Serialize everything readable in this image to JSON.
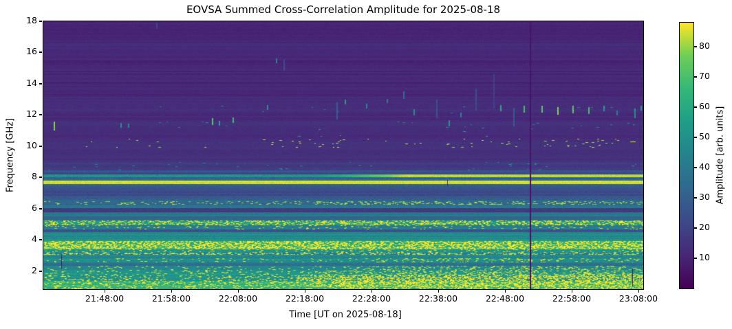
{
  "chart_data": {
    "type": "heatmap",
    "title": "EOVSA Summed Cross-Correlation Amplitude for 2025-08-18",
    "xlabel": "Time [UT on 2025-08-18]",
    "ylabel": "Frequency [GHz]",
    "x_ticks": [
      "21:48:00",
      "21:58:00",
      "22:08:00",
      "22:18:00",
      "22:28:00",
      "22:38:00",
      "22:48:00",
      "22:58:00",
      "23:08:00"
    ],
    "x_range": [
      "21:38:50",
      "23:08:44"
    ],
    "y_ticks": [
      2,
      4,
      6,
      8,
      10,
      12,
      14,
      16,
      18
    ],
    "y_range": [
      0.85,
      18.0
    ],
    "grid": false,
    "colormap": "viridis",
    "colorbar": {
      "label": "Amplitude [arb. units]",
      "ticks": [
        10,
        20,
        30,
        40,
        50,
        60,
        70,
        80
      ],
      "vmin": 0,
      "vmax": 88
    },
    "bands": [
      {
        "f": [
          17.2,
          18.05
        ],
        "amp": 10,
        "rv": 2,
        "cv": 1.5
      },
      {
        "f": [
          13.0,
          17.2
        ],
        "amp": 11,
        "rv": 2.5,
        "cv": 1.5
      },
      {
        "f": [
          12.6,
          13.0
        ],
        "amp": 13,
        "rv": 1.5,
        "cv": 2
      },
      {
        "f": [
          12.1,
          12.6
        ],
        "amp": 13.5,
        "rv": 1.5,
        "cv": 2,
        "sp": {
          "amp": 46,
          "p": 0.0015
        },
        "xb": [
          [
            0.75,
            0.96,
            5
          ]
        ]
      },
      {
        "f": [
          11.6,
          12.1
        ],
        "amp": 12,
        "rv": 1.5,
        "cv": 2
      },
      {
        "f": [
          11.1,
          11.6
        ],
        "amp": 13.5,
        "rv": 1.5,
        "cv": 2,
        "sp": {
          "amp": 46,
          "p": 0.002
        },
        "xb": [
          [
            0.66,
            0.84,
            6
          ],
          [
            0.88,
            1.0,
            5
          ]
        ]
      },
      {
        "f": [
          10.5,
          11.1
        ],
        "amp": 12.5,
        "rv": 1.5,
        "cv": 2,
        "sp": {
          "amp": 60,
          "p": 0.0008
        },
        "xb": [
          [
            0.45,
            0.52,
            4
          ],
          [
            0.66,
            0.75,
            5
          ]
        ]
      },
      {
        "f": [
          9.9,
          10.5
        ],
        "amp": 14,
        "rv": 1.5,
        "cv": 2,
        "sp": {
          "amp": 82,
          "p": 0.004
        },
        "xb": [
          [
            0.07,
            0.2,
            3
          ],
          [
            0.35,
            0.58,
            5
          ],
          [
            0.66,
            0.8,
            6
          ],
          [
            0.82,
            0.99,
            7
          ]
        ]
      },
      {
        "f": [
          9.0,
          9.9
        ],
        "amp": 14,
        "rv": 1.5,
        "cv": 2
      },
      {
        "f": [
          8.45,
          9.0
        ],
        "amp": 17,
        "rv": 2,
        "cv": 2.5,
        "sp": {
          "amp": 46,
          "p": 0.003
        },
        "xb": [
          [
            0.2,
            0.33,
            4
          ],
          [
            0.68,
            0.84,
            5
          ]
        ]
      },
      {
        "f": [
          8.2,
          8.45
        ],
        "amp": 24,
        "rv": 3,
        "cv": 3
      },
      {
        "f": [
          8.0,
          8.2
        ],
        "amp": 50,
        "rv": 5,
        "cv": 7,
        "xsplit": {
          "x": 0.6,
          "amp": 83
        }
      },
      {
        "f": [
          7.78,
          8.0
        ],
        "amp": 34,
        "rv": 4,
        "cv": 6
      },
      {
        "f": [
          7.6,
          7.78
        ],
        "amp": 85,
        "rv": 2,
        "cv": 3
      },
      {
        "f": [
          7.2,
          7.6
        ],
        "amp": 28,
        "rv": 3,
        "cv": 3.5
      },
      {
        "f": [
          6.85,
          7.2
        ],
        "amp": 22,
        "rv": 3,
        "cv": 3
      },
      {
        "f": [
          6.5,
          6.85
        ],
        "amp": 31,
        "rv": 3.5,
        "cv": 4
      },
      {
        "f": [
          6.28,
          6.5
        ],
        "amp": 33,
        "rv": 3,
        "cv": 4,
        "sp": {
          "amp": 80,
          "p": 0.1
        },
        "xb": [
          [
            0.45,
            1.0,
            2.2
          ]
        ]
      },
      {
        "f": [
          6.05,
          6.28
        ],
        "amp": 37,
        "rv": 3,
        "cv": 4
      },
      {
        "f": [
          5.78,
          6.05
        ],
        "amp": 18,
        "rv": 3,
        "cv": 3
      },
      {
        "f": [
          5.5,
          5.78
        ],
        "amp": 40,
        "rv": 3.5,
        "cv": 4.5
      },
      {
        "f": [
          5.25,
          5.5
        ],
        "amp": 33,
        "rv": 3,
        "cv": 4.5
      },
      {
        "f": [
          4.95,
          5.25
        ],
        "amp": 52,
        "rv": 4,
        "cv": 6,
        "sp": {
          "amp": 85,
          "p": 0.38
        }
      },
      {
        "f": [
          4.68,
          4.95
        ],
        "amp": 40,
        "rv": 3.5,
        "cv": 5,
        "sp": {
          "amp": 83,
          "p": 0.06
        }
      },
      {
        "f": [
          4.5,
          4.68
        ],
        "amp": 23,
        "rv": 3,
        "cv": 4
      },
      {
        "f": [
          4.05,
          4.5
        ],
        "amp": 47,
        "rv": 4,
        "cv": 5.5
      },
      {
        "f": [
          3.95,
          4.05
        ],
        "amp": 52,
        "rv": 3,
        "cv": 5
      },
      {
        "f": [
          3.4,
          3.95
        ],
        "amp": 62,
        "rv": 4,
        "cv": 6,
        "sp": {
          "amp": 88,
          "p": 0.5
        }
      },
      {
        "f": [
          3.18,
          3.4
        ],
        "amp": 49,
        "rv": 3.5,
        "cv": 5,
        "sp": {
          "amp": 85,
          "p": 0.08
        }
      },
      {
        "f": [
          3.05,
          3.18
        ],
        "amp": 42,
        "rv": 3,
        "cv": 5,
        "sp": {
          "amp": 84,
          "p": 0.3
        }
      },
      {
        "f": [
          2.85,
          3.05
        ],
        "amp": 46,
        "rv": 3,
        "cv": 4.5
      },
      {
        "f": [
          2.55,
          2.85
        ],
        "amp": 49,
        "rv": 3.5,
        "cv": 5,
        "sp": {
          "amp": 83,
          "p": 0.04
        },
        "xb": [
          [
            0.55,
            1.0,
            4
          ]
        ]
      },
      {
        "f": [
          2.35,
          2.55
        ],
        "amp": 37,
        "rv": 3,
        "cv": 4.5
      },
      {
        "f": [
          2.05,
          2.35
        ],
        "amp": 49,
        "rv": 3.5,
        "cv": 5,
        "sp": {
          "amp": 83,
          "p": 0.05
        },
        "xb": [
          [
            0.5,
            1.0,
            3
          ]
        ]
      },
      {
        "f": [
          1.76,
          2.05
        ],
        "amp": 53,
        "rv": 3.5,
        "cv": 5.5,
        "sp": {
          "amp": 84,
          "p": 0.07
        },
        "xb": [
          [
            0.45,
            1.0,
            3
          ]
        ]
      },
      {
        "f": [
          1.36,
          1.76
        ],
        "amp": 50,
        "rv": 4,
        "cv": 6,
        "sp": {
          "amp": 86,
          "p": 0.12
        },
        "xb": [
          [
            0.42,
            1.0,
            4.5
          ]
        ]
      },
      {
        "f": [
          1.0,
          1.36
        ],
        "amp": 64,
        "rv": 4,
        "cv": 6,
        "sp": {
          "amp": 87,
          "p": 0.18
        },
        "xb": [
          [
            0.45,
            1.0,
            3
          ]
        ]
      },
      {
        "f": [
          0.82,
          1.0
        ],
        "amp": 62,
        "rv": 4,
        "cv": 6,
        "sp": {
          "amp": 86,
          "p": 0.15
        },
        "xb": [
          [
            0.5,
            1.0,
            2.5
          ]
        ]
      }
    ],
    "features": {
      "gap": {
        "x": 0.811,
        "w": 2,
        "amp": 4
      },
      "marks": [
        {
          "x": 0.03,
          "f": [
            2.2,
            3.05
          ],
          "amp": 6
        },
        {
          "x": 0.982,
          "f": [
            1.05,
            2.15
          ],
          "amp": 6
        },
        {
          "x": 0.673,
          "f": [
            7.5,
            7.85
          ],
          "amp": 10
        }
      ],
      "dashes": [
        {
          "x": 0.017,
          "f": 11.3,
          "h": 0.55,
          "amp": 78
        },
        {
          "x": 0.128,
          "f": 11.35,
          "h": 0.3,
          "amp": 48
        },
        {
          "x": 0.141,
          "f": 11.3,
          "h": 0.25,
          "amp": 46
        },
        {
          "x": 0.188,
          "f": 17.75,
          "h": 0.4,
          "amp": 22
        },
        {
          "x": 0.281,
          "f": 11.6,
          "h": 0.45,
          "amp": 74
        },
        {
          "x": 0.292,
          "f": 11.5,
          "h": 0.3,
          "amp": 58
        },
        {
          "x": 0.315,
          "f": 11.65,
          "h": 0.35,
          "amp": 68
        },
        {
          "x": 0.373,
          "f": 12.5,
          "h": 0.3,
          "amp": 50
        },
        {
          "x": 0.388,
          "f": 15.5,
          "h": 0.3,
          "amp": 46
        },
        {
          "x": 0.4,
          "f": 15.2,
          "h": 0.7,
          "amp": 24
        },
        {
          "x": 0.489,
          "f": 12.3,
          "h": 1.1,
          "amp": 30
        },
        {
          "x": 0.502,
          "f": 12.85,
          "h": 0.3,
          "amp": 55
        },
        {
          "x": 0.538,
          "f": 12.6,
          "h": 0.3,
          "amp": 48
        },
        {
          "x": 0.572,
          "f": 12.9,
          "h": 0.25,
          "amp": 44
        },
        {
          "x": 0.6,
          "f": 13.3,
          "h": 0.5,
          "amp": 36
        },
        {
          "x": 0.617,
          "f": 12.2,
          "h": 0.4,
          "amp": 50
        },
        {
          "x": 0.655,
          "f": 12.4,
          "h": 1.2,
          "amp": 26
        },
        {
          "x": 0.675,
          "f": 11.5,
          "h": 0.4,
          "amp": 52
        },
        {
          "x": 0.695,
          "f": 12.0,
          "h": 0.3,
          "amp": 46
        },
        {
          "x": 0.72,
          "f": 13.0,
          "h": 1.4,
          "amp": 24
        },
        {
          "x": 0.75,
          "f": 13.5,
          "h": 2.2,
          "amp": 20
        },
        {
          "x": 0.762,
          "f": 12.45,
          "h": 0.4,
          "amp": 60
        },
        {
          "x": 0.783,
          "f": 11.9,
          "h": 1.2,
          "amp": 30
        },
        {
          "x": 0.8,
          "f": 12.35,
          "h": 0.45,
          "amp": 70
        },
        {
          "x": 0.83,
          "f": 12.35,
          "h": 0.45,
          "amp": 72
        },
        {
          "x": 0.857,
          "f": 12.3,
          "h": 0.5,
          "amp": 78
        },
        {
          "x": 0.882,
          "f": 12.35,
          "h": 0.5,
          "amp": 74
        },
        {
          "x": 0.908,
          "f": 12.3,
          "h": 0.45,
          "amp": 70
        },
        {
          "x": 0.933,
          "f": 12.4,
          "h": 0.35,
          "amp": 55
        },
        {
          "x": 0.955,
          "f": 12.15,
          "h": 0.3,
          "amp": 45
        },
        {
          "x": 0.985,
          "f": 12.1,
          "h": 0.6,
          "amp": 50
        },
        {
          "x": 0.995,
          "f": 12.45,
          "h": 0.3,
          "amp": 55
        }
      ]
    }
  }
}
